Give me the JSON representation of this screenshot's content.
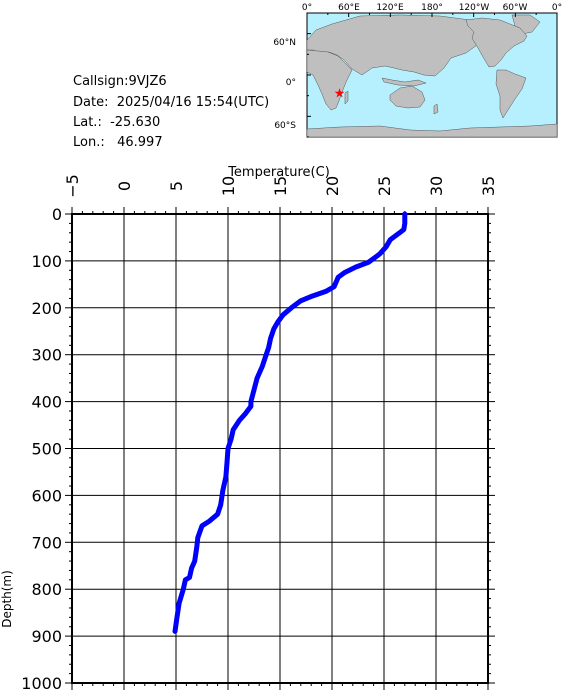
{
  "meta": {
    "callsign": "Callsign:9VJZ6",
    "date": "Date:  2025/04/16 15:54(UTC)",
    "lat": "Lat.:  -25.630",
    "lon": "Lon.:   46.997"
  },
  "map": {
    "top_labels": [
      "0°",
      "60°E",
      "120°E",
      "180°",
      "120°W",
      "60°W",
      "0°"
    ],
    "left_labels": [
      "60°N",
      "0°",
      "60°S"
    ],
    "ocean_color": "#b6f0ff",
    "land_color": "#bfbfbf",
    "marker_color": "#ff0000",
    "marker": {
      "lon": 46.997,
      "lat": -25.63
    }
  },
  "chart_data": {
    "type": "line",
    "xlabel": "Temperature(C)",
    "ylabel": "Depth(m)",
    "xlim": [
      -5,
      35
    ],
    "ylim": [
      0,
      1000
    ],
    "y_inverted": true,
    "x_axis_position": "top",
    "xticks": [
      -5,
      0,
      5,
      10,
      15,
      20,
      25,
      30,
      35
    ],
    "yticks": [
      0,
      100,
      200,
      300,
      400,
      500,
      600,
      700,
      800,
      900,
      1000
    ],
    "grid": true,
    "series": [
      {
        "color": "#0000ff",
        "x": [
          27.0,
          27.0,
          26.9,
          26.5,
          25.6,
          25.2,
          24.6,
          24.3,
          23.5,
          22.3,
          21.2,
          20.6,
          20.2,
          19.4,
          18.1,
          17.0,
          16.1,
          15.3,
          14.8,
          14.4,
          14.1,
          13.9,
          13.6,
          13.3,
          12.8,
          12.5,
          12.2,
          12.2,
          11.7,
          11.1,
          10.5,
          10.3,
          10.0,
          9.9,
          9.8,
          9.5,
          9.3,
          9.0,
          8.2,
          7.5,
          7.1,
          7.0,
          6.8,
          6.5,
          6.3,
          5.9,
          5.7,
          5.3,
          5.1,
          4.9
        ],
        "y": [
          0,
          20,
          33,
          40,
          55,
          70,
          85,
          90,
          103,
          113,
          125,
          135,
          155,
          165,
          175,
          185,
          200,
          215,
          230,
          245,
          265,
          285,
          305,
          325,
          350,
          375,
          400,
          410,
          425,
          440,
          460,
          480,
          500,
          530,
          560,
          590,
          620,
          640,
          655,
          665,
          690,
          710,
          740,
          755,
          775,
          780,
          800,
          830,
          860,
          890
        ]
      }
    ]
  }
}
